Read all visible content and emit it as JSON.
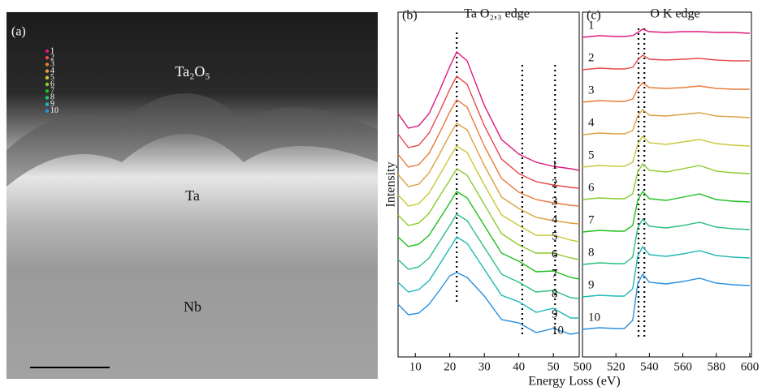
{
  "image_panel": {
    "label": "(a)",
    "annotations": [
      "Ta₂O₅",
      "Ta",
      "Nb"
    ]
  },
  "shared_x_label": "Energy Loss (eV)",
  "chart_data": [
    {
      "type": "line",
      "panel_label": "(b)",
      "title": "Ta O₂,₃ edge",
      "y_label": "Intensity",
      "x": [
        5,
        8,
        11,
        14,
        17,
        20,
        22,
        25,
        30,
        35,
        40,
        45,
        50,
        55,
        57.5
      ],
      "xlim": [
        5,
        57.5
      ],
      "xticks": [
        10,
        20,
        30,
        40,
        50
      ],
      "ylim": [
        20,
        445
      ],
      "vlines": [
        22,
        41,
        50.5
      ],
      "series": [
        {
          "name": "1",
          "color": "#e0177f",
          "values": [
            320,
            302,
            305,
            320,
            348,
            378,
            396,
            385,
            330,
            288,
            270,
            260,
            255,
            252,
            250
          ]
        },
        {
          "name": "2",
          "color": "#e84a4a",
          "values": [
            295,
            278,
            281,
            296,
            322,
            350,
            366,
            356,
            305,
            264,
            246,
            236,
            232,
            229,
            228
          ]
        },
        {
          "name": "3",
          "color": "#e87a3a",
          "values": [
            270,
            254,
            257,
            271,
            296,
            322,
            337,
            328,
            280,
            240,
            223,
            214,
            210,
            207,
            206
          ]
        },
        {
          "name": "4",
          "color": "#dca040",
          "values": [
            245,
            230,
            233,
            247,
            270,
            294,
            308,
            300,
            256,
            217,
            203,
            192,
            188,
            185,
            184
          ]
        },
        {
          "name": "5",
          "color": "#c8c83a",
          "values": [
            220,
            206,
            209,
            222,
            244,
            266,
            280,
            272,
            232,
            195,
            182,
            170,
            170,
            164,
            162
          ]
        },
        {
          "name": "6",
          "color": "#8ccc2e",
          "values": [
            195,
            182,
            185,
            197,
            218,
            238,
            252,
            244,
            208,
            172,
            158,
            148,
            148,
            142,
            140
          ]
        },
        {
          "name": "7",
          "color": "#1ec01e",
          "values": [
            168,
            156,
            159,
            170,
            190,
            210,
            224,
            216,
            182,
            148,
            138,
            125,
            126,
            118,
            116
          ]
        },
        {
          "name": "8",
          "color": "#28c080",
          "values": [
            140,
            128,
            131,
            142,
            162,
            182,
            196,
            188,
            155,
            122,
            112,
            100,
            102,
            93,
            92
          ]
        },
        {
          "name": "9",
          "color": "#1fb8b8",
          "values": [
            112,
            100,
            103,
            114,
            134,
            154,
            168,
            160,
            128,
            96,
            88,
            75,
            80,
            68,
            68
          ]
        },
        {
          "name": "10",
          "color": "#2a90e0",
          "values": [
            85,
            72,
            74,
            85,
            102,
            120,
            124,
            118,
            95,
            66,
            62,
            50,
            55,
            48,
            50
          ]
        }
      ]
    },
    {
      "type": "line",
      "panel_label": "(c)",
      "title": "O K edge",
      "x": [
        500,
        510,
        520,
        525,
        530,
        533,
        536,
        540,
        550,
        560,
        570,
        580,
        590,
        600
      ],
      "xlim": [
        500,
        601
      ],
      "xticks": [
        500,
        520,
        540,
        560,
        580,
        600
      ],
      "ylim": [
        20,
        445
      ],
      "vlines": [
        533.5,
        537
      ],
      "series": [
        {
          "name": "1",
          "color": "#e0177f",
          "values": [
            414,
            416,
            415,
            415,
            416,
            420,
            424,
            421,
            420,
            421,
            421,
            420,
            420,
            419
          ]
        },
        {
          "name": "2",
          "color": "#e84a4a",
          "values": [
            374,
            376,
            375,
            375,
            377,
            386,
            392,
            387,
            386,
            387,
            388,
            386,
            385,
            385
          ]
        },
        {
          "name": "3",
          "color": "#e87a3a",
          "values": [
            334,
            336,
            335,
            335,
            338,
            351,
            358,
            352,
            351,
            352,
            354,
            351,
            350,
            350
          ]
        },
        {
          "name": "4",
          "color": "#dca040",
          "values": [
            294,
            296,
            295,
            295,
            299,
            317,
            325,
            318,
            317,
            319,
            321,
            317,
            316,
            315
          ]
        },
        {
          "name": "5",
          "color": "#c8c83a",
          "values": [
            254,
            256,
            255,
            255,
            260,
            282,
            292,
            284,
            282,
            285,
            288,
            283,
            281,
            280
          ]
        },
        {
          "name": "6",
          "color": "#8ccc2e",
          "values": [
            214,
            216,
            215,
            215,
            221,
            248,
            258,
            250,
            248,
            252,
            256,
            249,
            247,
            246
          ]
        },
        {
          "name": "7",
          "color": "#1ec01e",
          "values": [
            174,
            176,
            175,
            175,
            182,
            213,
            224,
            215,
            213,
            217,
            221,
            214,
            212,
            211
          ]
        },
        {
          "name": "8",
          "color": "#28c080",
          "values": [
            134,
            136,
            135,
            135,
            143,
            179,
            190,
            181,
            179,
            182,
            186,
            180,
            178,
            177
          ]
        },
        {
          "name": "9",
          "color": "#1fb8b8",
          "values": [
            94,
            96,
            95,
            95,
            104,
            144,
            156,
            146,
            144,
            147,
            151,
            145,
            143,
            142
          ]
        },
        {
          "name": "10",
          "color": "#2a90e0",
          "values": [
            54,
            56,
            55,
            55,
            65,
            110,
            122,
            112,
            110,
            113,
            117,
            111,
            109,
            108
          ]
        }
      ]
    }
  ]
}
